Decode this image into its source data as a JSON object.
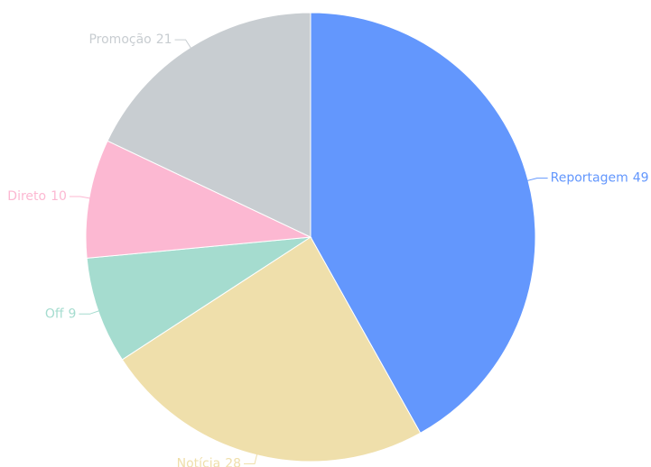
{
  "chart_data": {
    "type": "pie",
    "categories": [
      "Reportagem",
      "Notícia",
      "Off",
      "Direto",
      "Promoção"
    ],
    "values": [
      49,
      28,
      9,
      10,
      21
    ],
    "colors": [
      "#6397fd",
      "#efdfab",
      "#a5dccf",
      "#fcb8d2",
      "#c8cdd1"
    ]
  }
}
